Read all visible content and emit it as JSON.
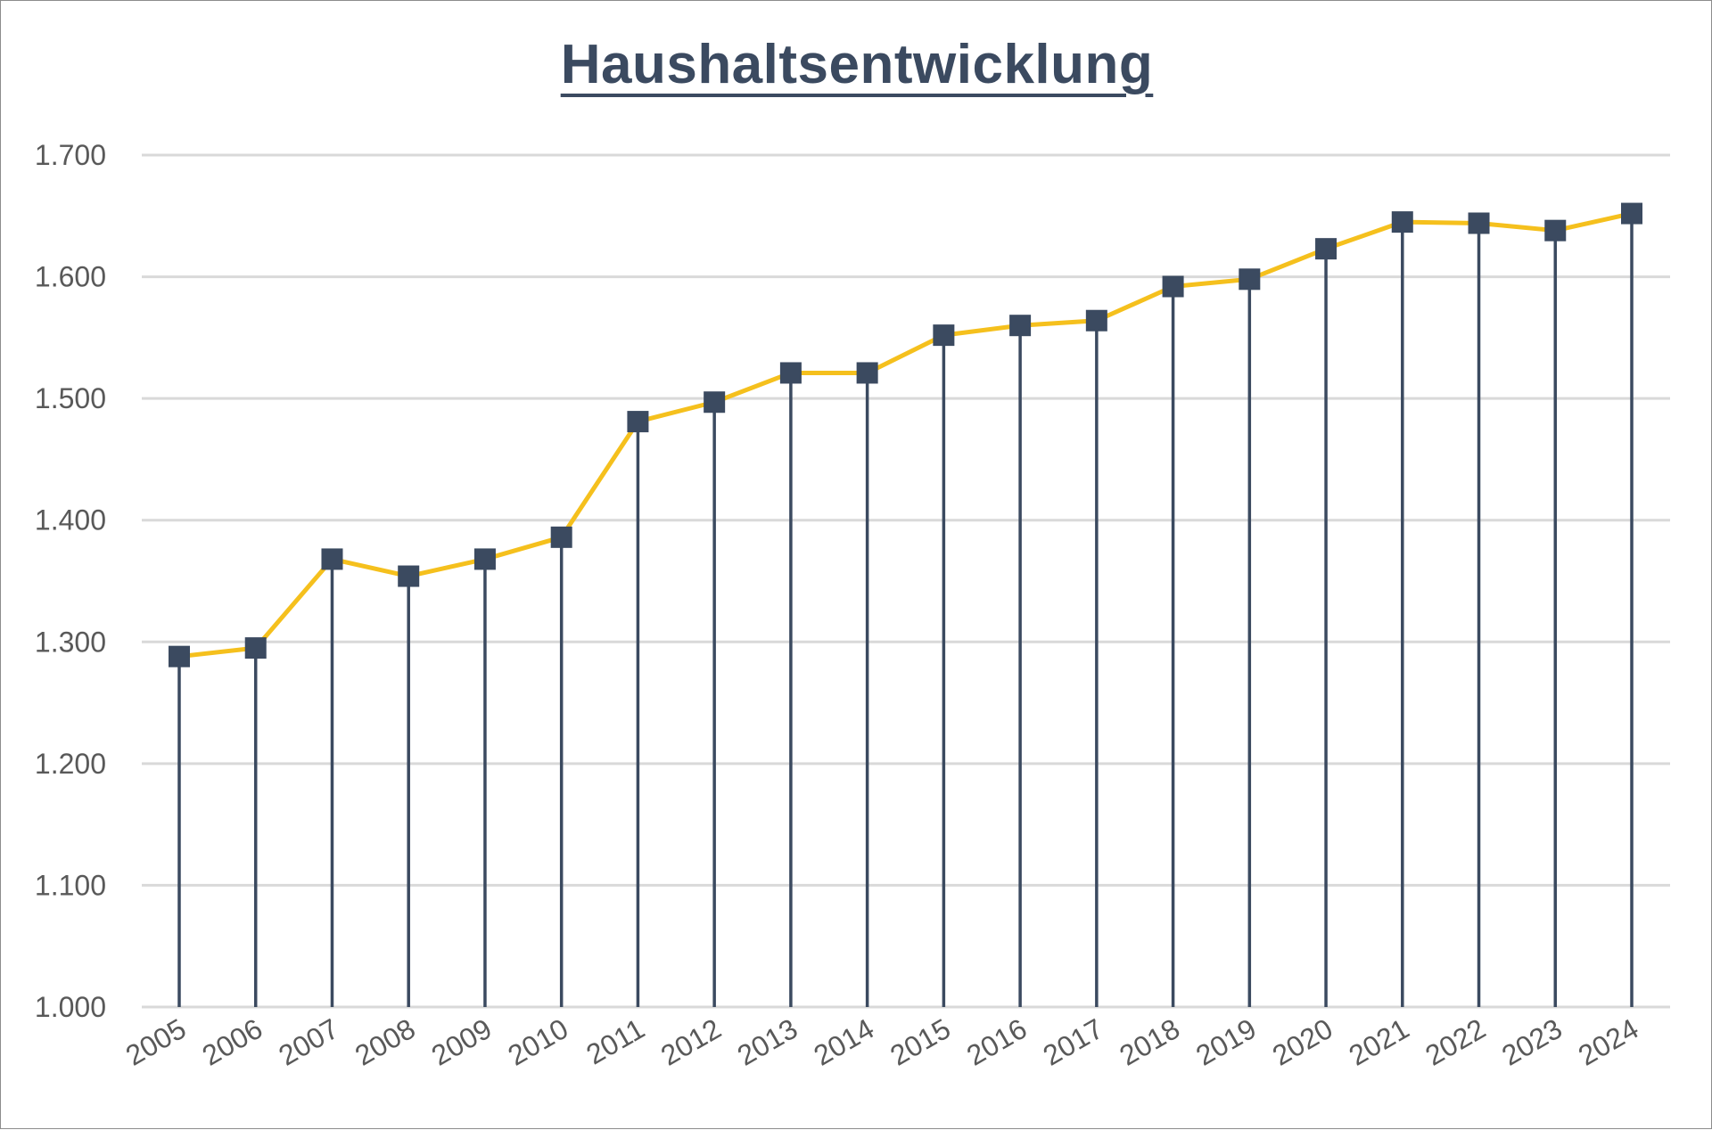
{
  "chart_data": {
    "type": "line",
    "title": "Haushaltsentwicklung",
    "xlabel": "",
    "ylabel": "",
    "ylim": [
      1000,
      1700
    ],
    "yticks": [
      1000,
      1100,
      1200,
      1300,
      1400,
      1500,
      1600,
      1700
    ],
    "ytick_labels": [
      "1.000",
      "1.100",
      "1.200",
      "1.300",
      "1.400",
      "1.500",
      "1.600",
      "1.700"
    ],
    "categories": [
      "2005",
      "2006",
      "2007",
      "2008",
      "2009",
      "2010",
      "2011",
      "2012",
      "2013",
      "2014",
      "2015",
      "2016",
      "2017",
      "2018",
      "2019",
      "2020",
      "2021",
      "2022",
      "2023",
      "2024"
    ],
    "values": [
      1288,
      1295,
      1368,
      1354,
      1368,
      1386,
      1481,
      1497,
      1521,
      1521,
      1552,
      1560,
      1564,
      1592,
      1598,
      1623,
      1645,
      1644,
      1638,
      1652
    ],
    "grid": true,
    "drop_lines": true,
    "marker": "square",
    "colors": {
      "line": "#f5c01d",
      "marker": "#3b4a60",
      "drop_line": "#3b4a60",
      "grid": "#d9d9d9",
      "title": "#3b4a60"
    }
  }
}
